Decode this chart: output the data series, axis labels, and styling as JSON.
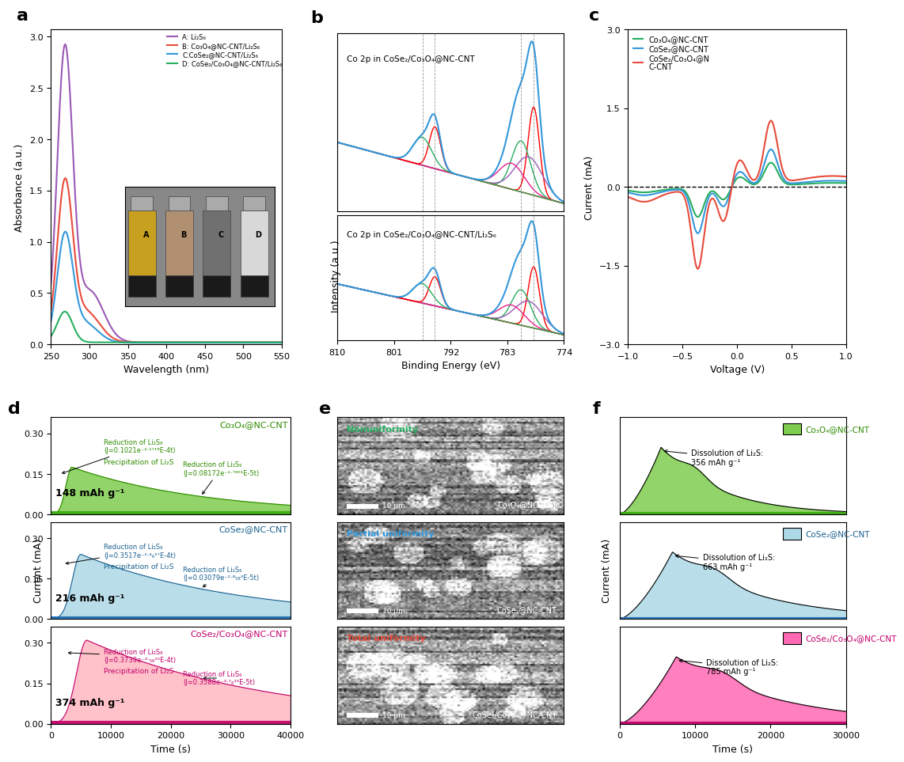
{
  "panel_a": {
    "xlabel": "Wavelength (nm)",
    "ylabel": "Absorbance (a.u.)",
    "legend": [
      "A: Li₂S₆",
      "B: Co₃O₄@NC-CNT/Li₂S₆",
      "C:CoSe₂@NC-CNT/Li₂S₆",
      "D: CoSe₂/Co₃O₄@NC-CNT/Li₂S₆"
    ],
    "colors": [
      "#9b59b6",
      "#e74c3c",
      "#3498db",
      "#27ae60"
    ]
  },
  "panel_b": {
    "xlabel": "Binding Energy (eV)",
    "ylabel": "Intensity (a.u.)",
    "label_top": "Co 2p in CoSe₂/Co₃O₄@NC-CNT",
    "label_bottom": "Co 2p in CoSe₂/Co₃O₄@NC-CNT/Li₂S₆"
  },
  "panel_c": {
    "xlabel": "Voltage (V)",
    "ylabel": "Current (mA)",
    "legend": [
      "Co₃O₄@NC-CNT",
      "CoSe₂@NC-CNT",
      "CoSe₂/Co₃O₄@N\nC-CNT"
    ],
    "colors": [
      "#27ae60",
      "#3498db",
      "#e74c3c"
    ]
  },
  "panel_d": {
    "xlabel": "Time (s)",
    "ylabel": "Current (mA)",
    "panels": [
      {
        "label": "Co₃O₄@NC-CNT",
        "color_fill": "#7FCD4F",
        "color_line": "#2e8b00",
        "color_text": "#2e8b00",
        "capacity": "148 mAh g⁻¹",
        "eq1": "Reduction of Li₂S₈\n(J=0.1021e⁻²·¹⁷¹⁶E-4t)",
        "eq2": "Reduction of Li₂S₆\n(J=0.08172e⁻¹·⁷⁸⁵¹E-5t)",
        "label2": "Precipitation of Li₂S",
        "band_color": "#3aaa10"
      },
      {
        "label": "CoSe₂@NC-CNT",
        "color_fill": "#ADD8E6",
        "color_line": "#1a6090",
        "color_text": "#1a6090",
        "capacity": "216 mAh g⁻¹",
        "eq1": "Reduction of Li₂S₈\n(J=0.3517e⁻²·⁴₆⁵⁷E-4t)",
        "eq2": "Reduction of Li₂S₆\n(J=0.03079e⁻²·⁸₅₈³E-5t)",
        "label2": "Precipitation of Li₂S",
        "band_color": "#1a6cb5"
      },
      {
        "label": "CoSe₂/Co₃O₄@NC-CNT",
        "color_fill": "#FFB6C1",
        "color_line": "#c0006a",
        "color_text": "#c0006a",
        "capacity": "374 mAh g⁻¹",
        "eq1": "Reduction of Li₂S₈\n(J=0.3739e⁻³·₅₆¹⁵E-4t)",
        "eq2": "Reduction of Li₂S₆\n(J=0.3588e⁻³·⁷₆¹⁵E-5t)",
        "label2": "Precipitation of Li₂S",
        "band_color": "#c0006a"
      }
    ]
  },
  "panel_f": {
    "xlabel": "Time (s)",
    "ylabel": "Current (mA)",
    "panels": [
      {
        "label": "Co₃O₄@NC-CNT",
        "color_fill": "#7FCD4F",
        "color_text": "#2e8b00",
        "capacity": "356 mAh g⁻¹",
        "band_color": "#3aaa10"
      },
      {
        "label": "CoSe₂@NC-CNT",
        "color_fill": "#ADD8E6",
        "color_text": "#1a6090",
        "capacity": "663 mAh g⁻¹",
        "band_color": "#1a6cb5"
      },
      {
        "label": "CoSe₂/Co₃O₄@NC-CNT",
        "color_fill": "#FF69B4",
        "color_text": "#c0006a",
        "capacity": "785 mAh g⁻¹",
        "band_color": "#c0006a"
      }
    ]
  }
}
